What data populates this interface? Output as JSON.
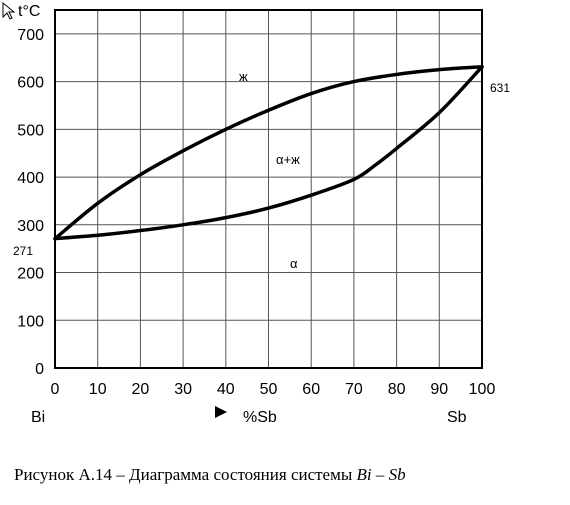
{
  "chart_data": {
    "type": "line",
    "ylabel": "t°C",
    "xlabel": "%Sb",
    "left_component": "Bi",
    "right_component": "Sb",
    "xlim": [
      0,
      100
    ],
    "ylim": [
      0,
      750
    ],
    "x_ticks": [
      "0",
      "10",
      "20",
      "30",
      "40",
      "50",
      "60",
      "70",
      "80",
      "90",
      "100"
    ],
    "y_ticks": [
      "0",
      "100",
      "200",
      "300",
      "400",
      "500",
      "600",
      "700"
    ],
    "grid": true,
    "point_labels": {
      "left": "271",
      "right": "631"
    },
    "region_labels": {
      "liquid": "ж",
      "two_phase": "α+ж",
      "solid": "α"
    },
    "series": [
      {
        "x": [
          0,
          10,
          20,
          30,
          40,
          50,
          60,
          70,
          80,
          90,
          100
        ],
        "y": [
          271,
          345,
          405,
          455,
          500,
          540,
          575,
          600,
          615,
          625,
          631
        ]
      },
      {
        "x": [
          0,
          10,
          20,
          30,
          40,
          50,
          60,
          70,
          75,
          80,
          90,
          100
        ],
        "y": [
          271,
          278,
          288,
          300,
          315,
          335,
          362,
          395,
          425,
          460,
          535,
          631
        ]
      }
    ]
  },
  "caption": {
    "text": "Рисунок А.14 – Диаграмма состояния системы ",
    "formula": "Bi – Sb"
  }
}
